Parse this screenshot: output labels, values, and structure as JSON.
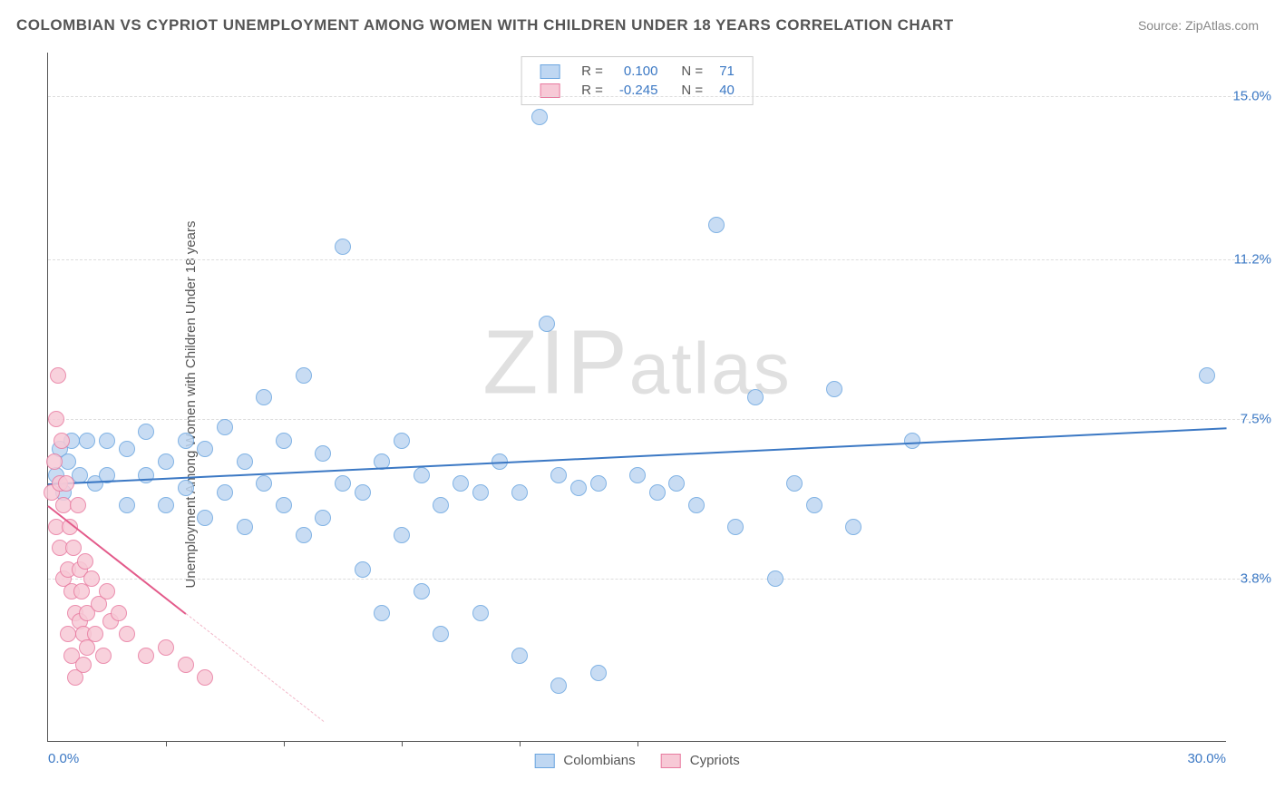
{
  "header": {
    "title": "COLOMBIAN VS CYPRIOT UNEMPLOYMENT AMONG WOMEN WITH CHILDREN UNDER 18 YEARS CORRELATION CHART",
    "source": "Source: ZipAtlas.com"
  },
  "ylabel": "Unemployment Among Women with Children Under 18 years",
  "watermark": {
    "z": "Z",
    "i": "I",
    "p": "P",
    "rest": "atlas"
  },
  "chart": {
    "type": "scatter",
    "xlim": [
      0,
      30
    ],
    "ylim": [
      0,
      16
    ],
    "background_color": "#ffffff",
    "grid_color": "#dddddd",
    "y_ticks": [
      {
        "v": 3.8,
        "label": "3.8%"
      },
      {
        "v": 7.5,
        "label": "7.5%"
      },
      {
        "v": 11.2,
        "label": "11.2%"
      },
      {
        "v": 15.0,
        "label": "15.0%"
      }
    ],
    "x_tick_marks": [
      3,
      6,
      9,
      12,
      15
    ],
    "x_end_labels": {
      "min": "0.0%",
      "max": "30.0%"
    },
    "series": [
      {
        "name": "Colombians",
        "color_fill": "#bfd7f2",
        "color_stroke": "#6ca6e0",
        "marker_radius": 9,
        "r_value": "0.100",
        "n_value": "71",
        "trend": {
          "x1": 0,
          "y1": 6.0,
          "x2": 30,
          "y2": 7.3,
          "color": "#3b78c4",
          "width": 2
        },
        "points": [
          [
            0.2,
            6.2
          ],
          [
            0.3,
            6.8
          ],
          [
            0.4,
            5.8
          ],
          [
            0.5,
            6.5
          ],
          [
            0.6,
            7.0
          ],
          [
            0.8,
            6.2
          ],
          [
            1.0,
            7.0
          ],
          [
            1.2,
            6.0
          ],
          [
            1.5,
            6.2
          ],
          [
            1.5,
            7.0
          ],
          [
            2.0,
            6.8
          ],
          [
            2.0,
            5.5
          ],
          [
            2.5,
            6.2
          ],
          [
            2.5,
            7.2
          ],
          [
            3.0,
            6.5
          ],
          [
            3.0,
            5.5
          ],
          [
            3.5,
            5.9
          ],
          [
            3.5,
            7.0
          ],
          [
            4.0,
            6.8
          ],
          [
            4.0,
            5.2
          ],
          [
            4.5,
            7.3
          ],
          [
            4.5,
            5.8
          ],
          [
            5.0,
            6.5
          ],
          [
            5.0,
            5.0
          ],
          [
            5.5,
            8.0
          ],
          [
            5.5,
            6.0
          ],
          [
            6.0,
            7.0
          ],
          [
            6.0,
            5.5
          ],
          [
            6.5,
            8.5
          ],
          [
            6.5,
            4.8
          ],
          [
            7.0,
            6.7
          ],
          [
            7.0,
            5.2
          ],
          [
            7.5,
            6.0
          ],
          [
            7.5,
            11.5
          ],
          [
            8.0,
            5.8
          ],
          [
            8.0,
            4.0
          ],
          [
            8.5,
            6.5
          ],
          [
            8.5,
            3.0
          ],
          [
            9.0,
            7.0
          ],
          [
            9.0,
            4.8
          ],
          [
            9.5,
            6.2
          ],
          [
            9.5,
            3.5
          ],
          [
            10.0,
            5.5
          ],
          [
            10.0,
            2.5
          ],
          [
            10.5,
            6.0
          ],
          [
            11.0,
            5.8
          ],
          [
            11.0,
            3.0
          ],
          [
            11.5,
            6.5
          ],
          [
            12.0,
            5.8
          ],
          [
            12.0,
            2.0
          ],
          [
            12.5,
            14.5
          ],
          [
            12.7,
            9.7
          ],
          [
            13.0,
            6.2
          ],
          [
            13.0,
            1.3
          ],
          [
            13.5,
            5.9
          ],
          [
            14.0,
            1.6
          ],
          [
            14.0,
            6.0
          ],
          [
            15.0,
            6.2
          ],
          [
            15.5,
            5.8
          ],
          [
            16.0,
            6.0
          ],
          [
            16.5,
            5.5
          ],
          [
            17.0,
            12.0
          ],
          [
            17.5,
            5.0
          ],
          [
            18.0,
            8.0
          ],
          [
            18.5,
            3.8
          ],
          [
            19.0,
            6.0
          ],
          [
            19.5,
            5.5
          ],
          [
            20.0,
            8.2
          ],
          [
            20.5,
            5.0
          ],
          [
            22.0,
            7.0
          ],
          [
            29.5,
            8.5
          ]
        ]
      },
      {
        "name": "Cypriots",
        "color_fill": "#f7c9d6",
        "color_stroke": "#e87ba0",
        "marker_radius": 9,
        "r_value": "-0.245",
        "n_value": "40",
        "trend": {
          "x1": 0,
          "y1": 5.5,
          "x2": 3.5,
          "y2": 3.0,
          "color": "#e35a8a",
          "width": 2
        },
        "trend_dash": {
          "x1": 3.5,
          "y1": 3.0,
          "x2": 7.0,
          "y2": 0.5,
          "color": "#f2b8c9"
        },
        "points": [
          [
            0.1,
            5.8
          ],
          [
            0.15,
            6.5
          ],
          [
            0.2,
            7.5
          ],
          [
            0.2,
            5.0
          ],
          [
            0.25,
            8.5
          ],
          [
            0.3,
            6.0
          ],
          [
            0.3,
            4.5
          ],
          [
            0.35,
            7.0
          ],
          [
            0.4,
            5.5
          ],
          [
            0.4,
            3.8
          ],
          [
            0.45,
            6.0
          ],
          [
            0.5,
            4.0
          ],
          [
            0.5,
            2.5
          ],
          [
            0.55,
            5.0
          ],
          [
            0.6,
            3.5
          ],
          [
            0.6,
            2.0
          ],
          [
            0.65,
            4.5
          ],
          [
            0.7,
            3.0
          ],
          [
            0.7,
            1.5
          ],
          [
            0.75,
            5.5
          ],
          [
            0.8,
            4.0
          ],
          [
            0.8,
            2.8
          ],
          [
            0.85,
            3.5
          ],
          [
            0.9,
            2.5
          ],
          [
            0.9,
            1.8
          ],
          [
            0.95,
            4.2
          ],
          [
            1.0,
            3.0
          ],
          [
            1.0,
            2.2
          ],
          [
            1.1,
            3.8
          ],
          [
            1.2,
            2.5
          ],
          [
            1.3,
            3.2
          ],
          [
            1.4,
            2.0
          ],
          [
            1.5,
            3.5
          ],
          [
            1.6,
            2.8
          ],
          [
            1.8,
            3.0
          ],
          [
            2.0,
            2.5
          ],
          [
            2.5,
            2.0
          ],
          [
            3.0,
            2.2
          ],
          [
            3.5,
            1.8
          ],
          [
            4.0,
            1.5
          ]
        ]
      }
    ],
    "legend_top": {
      "r_label": "R =",
      "n_label": "N =",
      "value_color": "#3b78c4"
    },
    "legend_bottom_labels": [
      "Colombians",
      "Cypriots"
    ]
  }
}
